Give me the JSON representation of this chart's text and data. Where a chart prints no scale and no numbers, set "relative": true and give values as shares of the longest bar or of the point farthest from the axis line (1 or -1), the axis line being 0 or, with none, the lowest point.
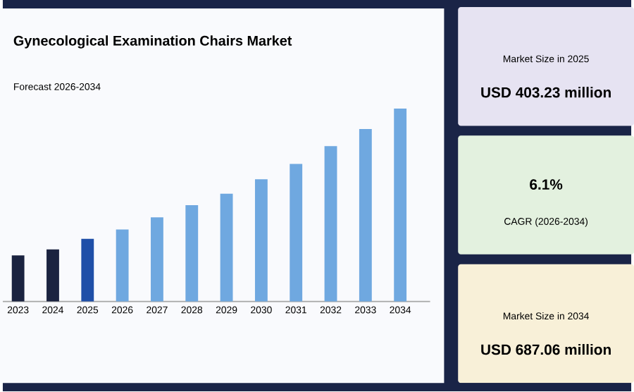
{
  "chart_data": [
    {
      "type": "bar",
      "title": "Gynecological Examination Chairs Market",
      "subtitle": "Forecast 2026-2034",
      "relative": true,
      "categories": [
        "2023",
        "2024",
        "2025",
        "2026",
        "2027",
        "2028",
        "2029",
        "2030",
        "2031",
        "2032",
        "2033",
        "2034"
      ],
      "values": [
        0.239,
        0.27,
        0.325,
        0.373,
        0.436,
        0.499,
        0.559,
        0.634,
        0.713,
        0.805,
        0.894,
        1
      ],
      "colors": [
        "#1b2340",
        "#1b2340",
        "#1f4fa8",
        "#6fa8e0",
        "#6fa8e0",
        "#6fa8e0",
        "#6fa8e0",
        "#6fa8e0",
        "#6fa8e0",
        "#6fa8e0",
        "#6fa8e0",
        "#6fa8e0"
      ]
    },
    {
      "type": "other",
      "annotations": [
        "Market Size in 2025",
        "USD 403.23 million"
      ]
    },
    {
      "type": "other",
      "annotations": [
        "6.1%",
        "CAGR (2026-2034)"
      ]
    },
    {
      "type": "other",
      "annotations": [
        "Market Size in 2034",
        "USD 687.06 million"
      ]
    }
  ]
}
